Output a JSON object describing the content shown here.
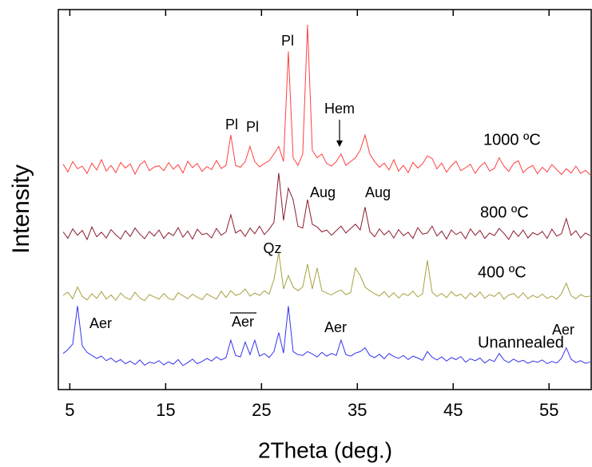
{
  "chart_data": {
    "type": "line",
    "x_label": "2Theta (deg.)",
    "y_label": "Intensity",
    "xlim": [
      3.8,
      59.4
    ],
    "xticks": [
      5,
      15,
      25,
      35,
      45,
      55
    ],
    "ylim": [
      0,
      100
    ],
    "x": [
      4.3,
      4.8,
      5.3,
      5.8,
      6.3,
      6.8,
      7.3,
      7.8,
      8.3,
      8.8,
      9.3,
      9.8,
      10.3,
      10.8,
      11.3,
      11.8,
      12.3,
      12.8,
      13.3,
      13.8,
      14.3,
      14.8,
      15.3,
      15.8,
      16.3,
      16.8,
      17.3,
      17.8,
      18.3,
      18.8,
      19.3,
      19.8,
      20.3,
      20.8,
      21.3,
      21.8,
      22.3,
      22.8,
      23.3,
      23.8,
      24.3,
      24.8,
      25.3,
      25.8,
      26.3,
      26.8,
      27.3,
      27.8,
      28.3,
      28.8,
      29.3,
      29.8,
      30.3,
      30.8,
      31.3,
      31.8,
      32.3,
      32.8,
      33.3,
      33.8,
      34.3,
      34.8,
      35.3,
      35.8,
      36.3,
      36.8,
      37.3,
      37.8,
      38.3,
      38.8,
      39.3,
      39.8,
      40.3,
      40.8,
      41.3,
      41.8,
      42.3,
      42.8,
      43.3,
      43.8,
      44.3,
      44.8,
      45.3,
      45.8,
      46.3,
      46.8,
      47.3,
      47.8,
      48.3,
      48.8,
      49.3,
      49.8,
      50.3,
      50.8,
      51.3,
      51.8,
      52.3,
      52.8,
      53.3,
      53.8,
      54.3,
      54.8,
      55.3,
      55.8,
      56.3,
      56.8,
      57.3,
      57.8,
      58.3,
      58.8,
      59.3
    ],
    "series": [
      {
        "name": "1000 ºC",
        "color": "#ff4040",
        "values": [
          59.3,
          57.3,
          60.0,
          58.1,
          58.8,
          56.9,
          59.6,
          57.8,
          60.5,
          57.5,
          59.0,
          57.1,
          59.8,
          58.3,
          59.4,
          56.7,
          59.1,
          60.2,
          57.6,
          58.6,
          58.9,
          57.6,
          59.7,
          58.0,
          59.2,
          57.0,
          60.1,
          58.4,
          59.5,
          57.4,
          58.7,
          57.9,
          60.3,
          58.2,
          59.0,
          67.0,
          59.0,
          58.5,
          60.0,
          64.0,
          60.0,
          58.6,
          59.5,
          60.2,
          62.0,
          64.0,
          60.0,
          89.0,
          61.0,
          59.0,
          62.0,
          96.0,
          63.0,
          61.0,
          62.0,
          59.5,
          58.8,
          60.0,
          62.0,
          59.0,
          60.0,
          61.0,
          63.0,
          67.0,
          62.0,
          60.0,
          58.5,
          59.6,
          57.8,
          60.5,
          57.5,
          59.0,
          57.1,
          59.8,
          58.3,
          59.4,
          61.5,
          60.8,
          58.1,
          59.6,
          57.2,
          58.9,
          60.1,
          57.6,
          58.4,
          59.3,
          56.9,
          58.7,
          59.8,
          57.5,
          58.2,
          61.0,
          58.8,
          57.4,
          59.5,
          60.2,
          57.1,
          58.3,
          59.0,
          56.8,
          58.5,
          57.3,
          59.2,
          57.9,
          56.6,
          58.1,
          57.0,
          58.8,
          56.9,
          57.7,
          56.5
        ]
      },
      {
        "name": "800 ºC",
        "color": "#8b1c2c",
        "values": [
          41.5,
          39.8,
          42.3,
          40.6,
          41.9,
          39.5,
          42.8,
          40.2,
          41.4,
          39.9,
          42.1,
          40.7,
          39.6,
          41.8,
          40.3,
          42.5,
          40.9,
          39.7,
          41.6,
          40.4,
          42.0,
          39.8,
          41.3,
          40.5,
          42.6,
          40.1,
          41.7,
          39.6,
          42.2,
          40.8,
          41.1,
          39.9,
          42.4,
          40.6,
          41.5,
          46.0,
          41.2,
          42.0,
          40.3,
          42.5,
          41.0,
          43.0,
          40.8,
          42.2,
          44.0,
          57.0,
          44.5,
          53.0,
          50.0,
          43.0,
          42.5,
          50.0,
          43.5,
          42.8,
          41.5,
          42.0,
          40.6,
          41.8,
          43.0,
          41.2,
          42.4,
          43.5,
          42.0,
          48.0,
          41.6,
          40.2,
          42.3,
          40.7,
          41.8,
          39.9,
          42.1,
          40.5,
          41.4,
          39.8,
          42.6,
          40.9,
          41.2,
          43.0,
          40.4,
          41.7,
          39.6,
          42.0,
          40.8,
          41.5,
          39.7,
          42.3,
          40.6,
          41.9,
          39.8,
          41.2,
          40.5,
          42.4,
          41.1,
          39.5,
          41.8,
          40.3,
          42.0,
          39.9,
          41.3,
          40.7,
          41.6,
          39.8,
          42.2,
          40.4,
          41.0,
          45.0,
          40.6,
          41.8,
          39.9,
          41.2,
          40.5
        ]
      },
      {
        "name": "400 ºC",
        "color": "#a9a040",
        "values": [
          24.8,
          25.6,
          23.9,
          27.0,
          24.5,
          23.6,
          25.2,
          24.0,
          25.8,
          23.8,
          24.9,
          23.5,
          25.4,
          24.2,
          23.7,
          25.6,
          24.1,
          23.4,
          25.0,
          24.4,
          23.8,
          25.3,
          24.0,
          23.6,
          25.5,
          24.7,
          23.9,
          25.1,
          24.3,
          23.7,
          25.2,
          24.5,
          23.8,
          25.9,
          24.2,
          26.0,
          24.8,
          25.2,
          26.5,
          24.6,
          25.4,
          24.8,
          26.0,
          25.1,
          29.0,
          36.0,
          26.5,
          30.0,
          27.0,
          26.0,
          27.0,
          33.0,
          26.5,
          32.0,
          26.0,
          25.4,
          24.9,
          25.7,
          26.2,
          25.0,
          25.5,
          32.0,
          30.0,
          27.0,
          26.0,
          25.2,
          24.6,
          25.8,
          24.3,
          25.5,
          24.1,
          25.3,
          24.7,
          25.9,
          24.4,
          25.2,
          34.0,
          25.6,
          24.5,
          25.3,
          24.2,
          25.8,
          24.6,
          25.1,
          23.9,
          25.4,
          24.3,
          25.7,
          24.0,
          25.0,
          24.5,
          25.6,
          23.8,
          24.9,
          25.3,
          24.1,
          25.5,
          23.9,
          24.8,
          24.2,
          25.1,
          24.0,
          24.6,
          23.8,
          25.2,
          28.0,
          24.7,
          23.9,
          25.0,
          24.4,
          24.6
        ]
      },
      {
        "name": "Unannealed",
        "color": "#3434ee",
        "values": [
          9.5,
          10.5,
          12.0,
          22.0,
          11.5,
          9.8,
          9.0,
          8.2,
          8.8,
          7.6,
          8.3,
          7.2,
          7.9,
          6.8,
          7.5,
          6.6,
          7.8,
          6.4,
          7.2,
          6.9,
          7.6,
          6.5,
          7.3,
          6.7,
          7.9,
          6.3,
          7.1,
          8.0,
          6.8,
          7.4,
          8.2,
          7.5,
          8.6,
          7.8,
          8.4,
          13.0,
          9.0,
          8.6,
          12.5,
          9.2,
          13.0,
          8.8,
          9.5,
          8.4,
          10.0,
          15.0,
          9.6,
          22.0,
          10.0,
          9.2,
          9.0,
          10.0,
          9.4,
          8.6,
          9.8,
          8.8,
          9.5,
          9.0,
          13.0,
          9.2,
          8.8,
          9.6,
          10.0,
          11.0,
          9.0,
          8.4,
          9.3,
          8.1,
          9.5,
          8.7,
          8.2,
          9.0,
          7.9,
          8.8,
          8.3,
          7.7,
          10.0,
          8.5,
          7.8,
          8.6,
          7.5,
          8.4,
          7.9,
          8.7,
          7.2,
          8.1,
          7.6,
          8.3,
          7.0,
          7.9,
          7.4,
          9.5,
          7.8,
          7.1,
          8.0,
          7.3,
          7.7,
          6.9,
          7.5,
          7.2,
          7.8,
          6.8,
          7.4,
          7.0,
          8.2,
          11.0,
          8.0,
          7.1,
          7.6,
          6.9,
          7.3
        ]
      }
    ],
    "annotations": [
      "Pl",
      "Pl",
      "Pl",
      "Hem",
      "Aug",
      "Aug",
      "Qz",
      "Aer",
      "Aer",
      "Aer",
      "Aer"
    ]
  }
}
